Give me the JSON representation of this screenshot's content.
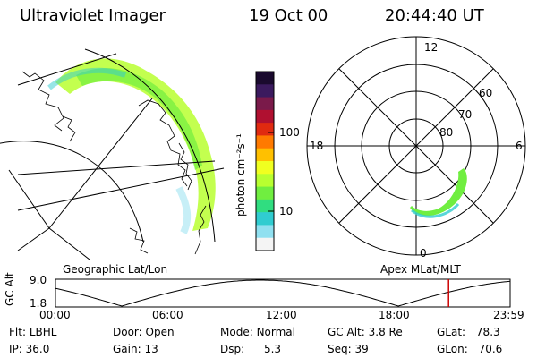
{
  "header": {
    "instrument": "Ultraviolet Imager",
    "date": "19 Oct 00",
    "time": "20:44:40 UT"
  },
  "colorbar": {
    "label": "photon cm⁻²s⁻¹",
    "ticks": [
      "100",
      "10"
    ],
    "colors": [
      "#1a0a2e",
      "#3b1a5e",
      "#7a1a4a",
      "#b01030",
      "#e02a10",
      "#ff7a00",
      "#ffc000",
      "#f0ff20",
      "#b8ff30",
      "#70ee40",
      "#30dd80",
      "#30ccd0",
      "#90e0f0",
      "#f4f4f4"
    ]
  },
  "polar": {
    "clock_labels": [
      "12",
      "18",
      "6",
      "0"
    ],
    "lat_labels": [
      "60",
      "70",
      "80"
    ]
  },
  "captions": {
    "left": "Geographic Lat/Lon",
    "right": "Apex MLat/MLT"
  },
  "altitude_plot": {
    "ylabel": "GC Alt",
    "yticks": [
      "9.0",
      "1.8"
    ],
    "xticks": [
      "00:00",
      "06:00",
      "12:00",
      "18:00",
      "23:59"
    ],
    "current_hour": 20.75,
    "marker_color": "#cc0000"
  },
  "footer": {
    "filter_label": "Flt:",
    "filter": "LBHL",
    "ip_label": "IP:",
    "ip": "36.0",
    "door_label": "Door:",
    "door": "Open",
    "gain_label": "Gain:",
    "gain": "13",
    "mode_label": "Mode:",
    "mode": "Normal",
    "dsp_label": "Dsp:",
    "dsp": "5.3",
    "gcalt_label": "GC Alt:",
    "gcalt": "3.8 Re",
    "seq_label": "Seq:",
    "seq": "39",
    "glat_label": "GLat:",
    "glat": "78.3",
    "glon_label": "GLon:",
    "glon": "70.6"
  }
}
